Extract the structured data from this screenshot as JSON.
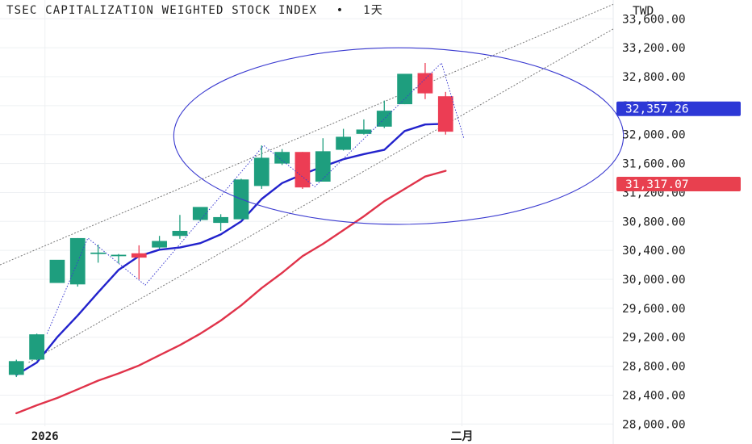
{
  "chart_data": {
    "type": "candlestick",
    "title": "TSEC CAPITALIZATION WEIGHTED STOCK INDEX",
    "title_dot": "•",
    "interval": "1天",
    "currency": "TWD",
    "y_ticks": [
      "33,600.00",
      "33,200.00",
      "32,800.00",
      "32,400.00",
      "32,000.00",
      "31,600.00",
      "31,200.00",
      "30,800.00",
      "30,400.00",
      "30,000.00",
      "29,600.00",
      "29,200.00",
      "28,800.00",
      "28,400.00",
      "28,000.00"
    ],
    "y_tick_values": [
      33600,
      33200,
      32800,
      32400,
      32000,
      31600,
      31200,
      30800,
      30400,
      30000,
      29600,
      29200,
      28800,
      28400,
      28000
    ],
    "ylim": [
      27970,
      33860
    ],
    "x_ticks": [
      {
        "label": "2026",
        "index": 1.4
      },
      {
        "label": "二月",
        "index": 21.8
      }
    ],
    "xlim": [
      -0.8,
      29.2
    ],
    "candles": [
      {
        "o": 28680,
        "h": 28890,
        "l": 28650,
        "c": 28870
      },
      {
        "o": 28890,
        "h": 29250,
        "l": 28880,
        "c": 29240
      },
      {
        "o": 29950,
        "h": 30250,
        "l": 29950,
        "c": 30270
      },
      {
        "o": 29930,
        "h": 30570,
        "l": 29900,
        "c": 30570
      },
      {
        "o": 30350,
        "h": 30480,
        "l": 30230,
        "c": 30370
      },
      {
        "o": 30330,
        "h": 30350,
        "l": 30220,
        "c": 30340
      },
      {
        "o": 30360,
        "h": 30470,
        "l": 30000,
        "c": 30300
      },
      {
        "o": 30440,
        "h": 30600,
        "l": 30420,
        "c": 30530
      },
      {
        "o": 30600,
        "h": 30890,
        "l": 30560,
        "c": 30670
      },
      {
        "o": 30820,
        "h": 30990,
        "l": 30800,
        "c": 31000
      },
      {
        "o": 30780,
        "h": 30900,
        "l": 30670,
        "c": 30860
      },
      {
        "o": 30830,
        "h": 31390,
        "l": 30830,
        "c": 31380
      },
      {
        "o": 31290,
        "h": 31850,
        "l": 31250,
        "c": 31680
      },
      {
        "o": 31600,
        "h": 31800,
        "l": 31580,
        "c": 31760
      },
      {
        "o": 31760,
        "h": 31760,
        "l": 31250,
        "c": 31270
      },
      {
        "o": 31350,
        "h": 31950,
        "l": 31350,
        "c": 31770
      },
      {
        "o": 31790,
        "h": 32080,
        "l": 31780,
        "c": 31970
      },
      {
        "o": 32010,
        "h": 32210,
        "l": 32000,
        "c": 32070
      },
      {
        "o": 32110,
        "h": 32470,
        "l": 32090,
        "c": 32330
      },
      {
        "o": 32420,
        "h": 32830,
        "l": 32420,
        "c": 32840
      },
      {
        "o": 32850,
        "h": 32990,
        "l": 32490,
        "c": 32570
      },
      {
        "o": 32530,
        "h": 32590,
        "l": 32000,
        "c": 32040
      }
    ],
    "series": [
      {
        "color": "#2222cc",
        "values": [
          28680,
          28850,
          29200,
          29500,
          29820,
          30130,
          30320,
          30410,
          30440,
          30500,
          30620,
          30800,
          31110,
          31330,
          31450,
          31560,
          31660,
          31730,
          31790,
          32050,
          32140,
          32150
        ]
      },
      {
        "color": "#e0334a",
        "values": [
          28150,
          28260,
          28360,
          28480,
          28600,
          28700,
          28810,
          28950,
          29090,
          29250,
          29430,
          29640,
          29880,
          30090,
          30320,
          30490,
          30680,
          30870,
          31080,
          31250,
          31420,
          31500
        ]
      }
    ],
    "trend_lines": [
      {
        "from": {
          "i": -0.8,
          "v": 30200
        },
        "to": {
          "i": 29.2,
          "v": 33800
        }
      },
      {
        "from": {
          "i": 0.6,
          "v": 28850
        },
        "to": {
          "i": 29.2,
          "v": 33460
        }
      }
    ],
    "zigzag": [
      {
        "i": 1.5,
        "v": 29250
      },
      {
        "i": 3.5,
        "v": 30570
      },
      {
        "i": 6.3,
        "v": 29920
      },
      {
        "i": 12.1,
        "v": 31850
      },
      {
        "i": 14.6,
        "v": 31280
      },
      {
        "i": 20.8,
        "v": 32990
      },
      {
        "i": 21.9,
        "v": 31940
      }
    ],
    "ellipse": {
      "cx_i": 18.7,
      "cy_v": 31980,
      "rx_i": 11.0,
      "ry_v": 1220
    },
    "last_price": {
      "value": 32357.26,
      "label": "32,357.26",
      "color": "#2d38d6"
    },
    "ma_value": {
      "value": 31317.07,
      "label": "31,317.07",
      "color": "#e8404f"
    },
    "colors": {
      "up": "#1e9e7e",
      "down": "#ec3d54",
      "grid": "#eef0f3",
      "axis_text": "#222222",
      "overlay": "#3a3ad0",
      "dotted": "#777777"
    }
  }
}
